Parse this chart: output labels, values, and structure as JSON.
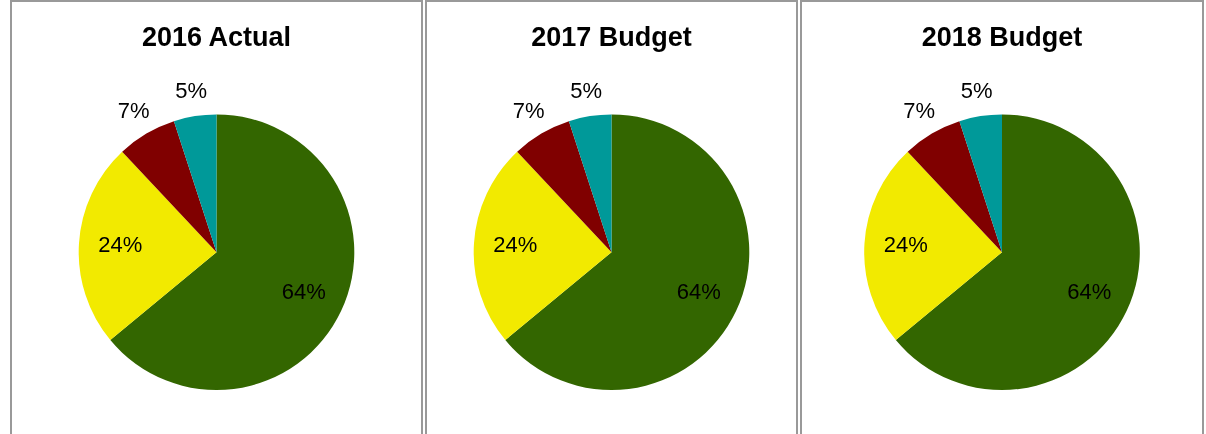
{
  "chart_data": [
    {
      "type": "pie",
      "title": "2016 Actual",
      "categories": [
        null,
        null,
        null,
        null
      ],
      "values": [
        64,
        24,
        7,
        5
      ],
      "colors": [
        "#336600",
        "#f2ea00",
        "#800000",
        "#009999"
      ],
      "value_labels": [
        "64%",
        "24%",
        "7%",
        "5%"
      ]
    },
    {
      "type": "pie",
      "title": "2017 Budget",
      "categories": [
        null,
        null,
        null,
        null
      ],
      "values": [
        64,
        24,
        7,
        5
      ],
      "colors": [
        "#336600",
        "#f2ea00",
        "#800000",
        "#009999"
      ],
      "value_labels": [
        "64%",
        "24%",
        "7%",
        "5%"
      ]
    },
    {
      "type": "pie",
      "title": "2018 Budget",
      "categories": [
        null,
        null,
        null,
        null
      ],
      "values": [
        64,
        24,
        7,
        5
      ],
      "colors": [
        "#336600",
        "#f2ea00",
        "#800000",
        "#009999"
      ],
      "value_labels": [
        "64%",
        "24%",
        "7%",
        "5%"
      ]
    }
  ]
}
